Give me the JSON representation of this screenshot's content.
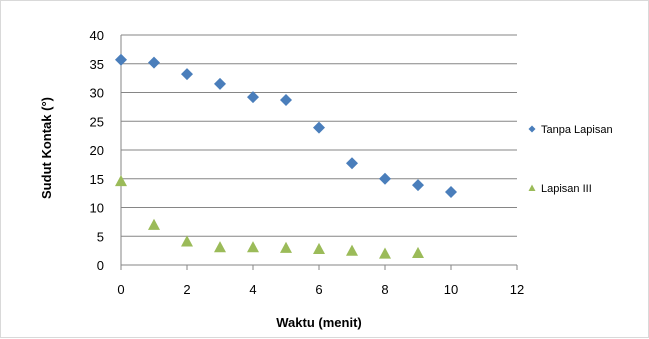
{
  "chart_data": {
    "type": "scatter",
    "xlabel": "Waktu (menit)",
    "ylabel": "Sudut Kontak (°)",
    "xlim": [
      0,
      12
    ],
    "ylim": [
      0,
      40
    ],
    "xticks": [
      "0",
      "2",
      "4",
      "6",
      "8",
      "10",
      "12"
    ],
    "yticks": [
      "0",
      "5",
      "10",
      "15",
      "20",
      "25",
      "30",
      "35",
      "40"
    ],
    "grid": "horizontal",
    "legend_position": "right",
    "series": [
      {
        "name": "Tanpa Lapisan",
        "marker": "diamond",
        "color": "#4a7ebb",
        "x": [
          0,
          1,
          2,
          3,
          4,
          5,
          6,
          7,
          8,
          9,
          10
        ],
        "y": [
          35.7,
          35.2,
          33.2,
          31.5,
          29.2,
          28.7,
          23.9,
          17.7,
          15.0,
          13.9,
          12.7
        ]
      },
      {
        "name": "Lapisan III",
        "marker": "triangle",
        "color": "#9bbb59",
        "x": [
          0,
          1,
          2,
          3,
          4,
          5,
          6,
          7,
          8,
          9
        ],
        "y": [
          14.6,
          7.0,
          4.1,
          3.1,
          3.1,
          3.0,
          2.8,
          2.5,
          2.0,
          2.1
        ]
      }
    ]
  }
}
